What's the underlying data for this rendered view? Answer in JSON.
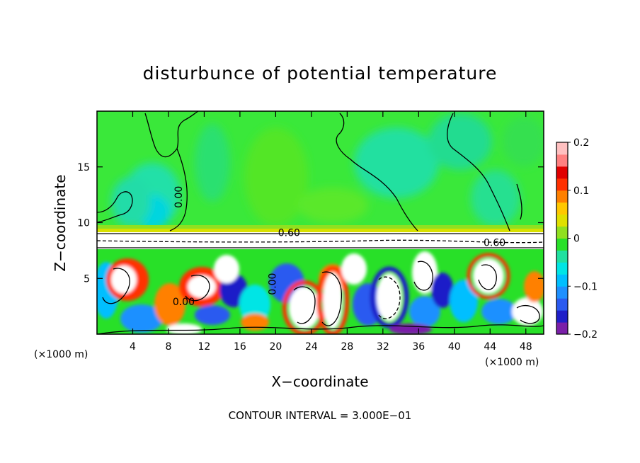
{
  "chart_data": {
    "type": "heatmap",
    "title": "disturbunce of potential temperature",
    "xlabel": "X−coordinate",
    "ylabel": "Z−coordinate",
    "x_unit_label": "(×1000 m)",
    "x_ticks": [
      4,
      8,
      12,
      16,
      20,
      24,
      28,
      32,
      36,
      40,
      44,
      48
    ],
    "y_ticks": [
      5,
      10,
      15
    ],
    "xlim": [
      0,
      50
    ],
    "ylim": [
      0,
      20
    ],
    "colorbar": {
      "ticks": [
        0.2,
        0.1,
        0,
        -0.1,
        -0.2
      ],
      "tick_labels": [
        "0.2",
        "0.1",
        "0",
        "−0.1",
        "−0.2"
      ],
      "range": [
        -0.2,
        0.2
      ],
      "colors": [
        "#7a1fa8",
        "#1f1fc8",
        "#2a5af0",
        "#1e90ff",
        "#00bfff",
        "#00e5e5",
        "#20e0a0",
        "#28e028",
        "#90e020",
        "#e0e000",
        "#ffc800",
        "#ff8000",
        "#ff3000",
        "#e00000",
        "#ff8080",
        "#ffc0c0"
      ]
    },
    "contour_labels": [
      {
        "text": "0.00",
        "x": 9.5,
        "z": 12.3,
        "rotate": -90
      },
      {
        "text": "0.60",
        "x": 21.5,
        "z": 8.8,
        "rotate": 0
      },
      {
        "text": "0.60",
        "x": 44.5,
        "z": 7.9,
        "rotate": 0
      },
      {
        "text": "0.00",
        "x": 20.0,
        "z": 4.5,
        "rotate": -90
      },
      {
        "text": "0.00",
        "x": 9.7,
        "z": 2.6,
        "rotate": 0
      }
    ],
    "contour_interval_text": "CONTOUR INTERVAL = 3.000E−01"
  }
}
